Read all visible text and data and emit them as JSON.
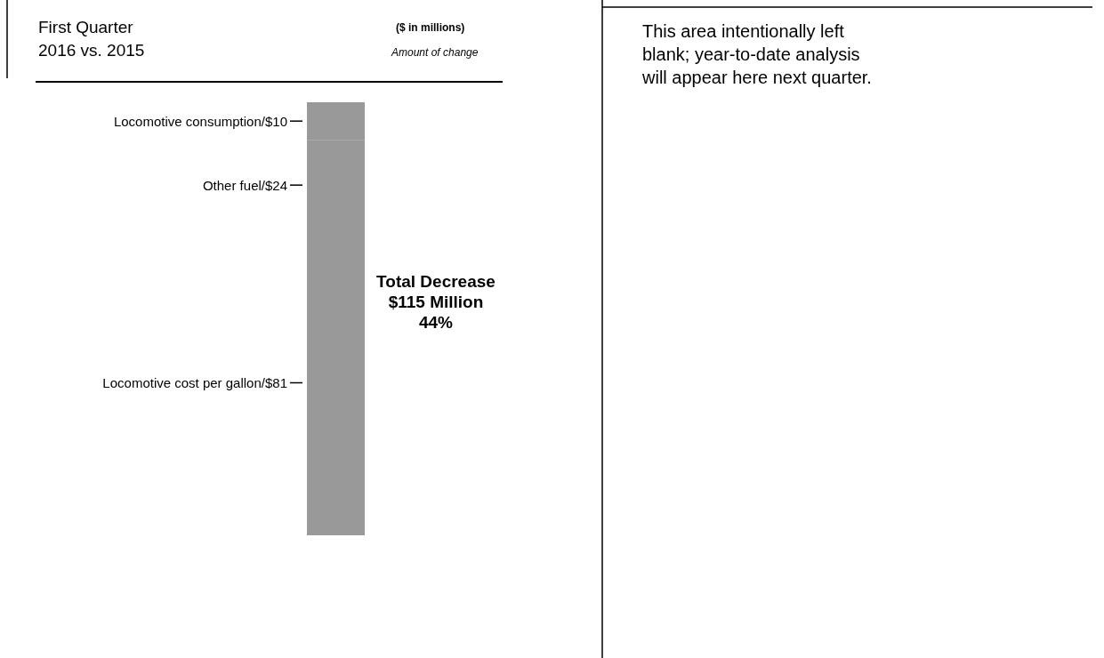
{
  "chart_data": {
    "type": "bar",
    "stacked": true,
    "title": "First Quarter\n2016 vs. 2015",
    "subtitle": "($ in millions)",
    "categories": [
      null
    ],
    "series": [
      {
        "color": "#999999",
        "values": [
          81
        ],
        "value_labels": [
          "Locomotive cost per gallon/$81"
        ]
      },
      {
        "color": "#999999",
        "values": [
          24
        ],
        "value_labels": [
          "Other fuel/$24"
        ]
      },
      {
        "color": "#999999",
        "values": [
          10
        ],
        "value_labels": [
          "Locomotive consumption/$10"
        ]
      }
    ],
    "annotations": [
      "Amount of change",
      "Total Decrease\n$115 Million\n44%",
      "This area intentionally left blank; year-to-date analysis will appear here next quarter."
    ]
  }
}
